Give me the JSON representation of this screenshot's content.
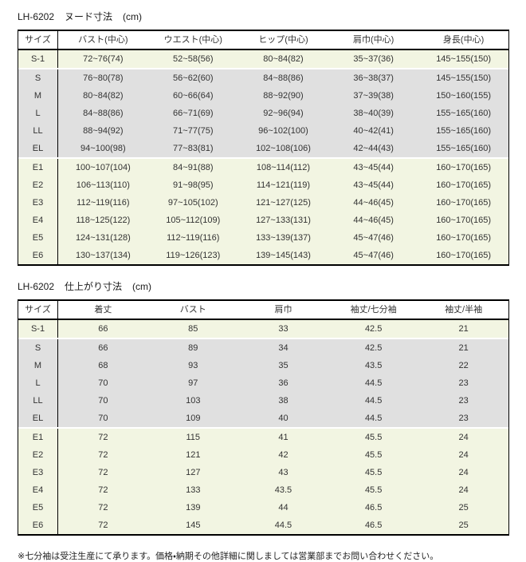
{
  "colors": {
    "row_cream": "#f2f5e2",
    "row_gray": "#e0e0e0",
    "border": "#000000",
    "text": "#333333",
    "background": "#ffffff"
  },
  "footnote": "※七分袖は受注生産にて承ります。価格・納期その他詳細に関しましては営業部までお問い合わせください。",
  "tables": [
    {
      "model": "LH-6202",
      "title": "ヌード寸法",
      "unit": "(cm)",
      "headers": [
        "サイズ",
        "バスト(中心)",
        "ウエスト(中心)",
        "ヒップ(中心)",
        "肩巾(中心)",
        "身長(中心)"
      ],
      "groups": [
        {
          "shade": "cream",
          "rows": [
            {
              "size": "S-1",
              "values": [
                "72~76(74)",
                "52~58(56)",
                "80~84(82)",
                "35~37(36)",
                "145~155(150)"
              ]
            }
          ]
        },
        {
          "shade": "gray",
          "rows": [
            {
              "size": "S",
              "values": [
                "76~80(78)",
                "56~62(60)",
                "84~88(86)",
                "36~38(37)",
                "145~155(150)"
              ]
            },
            {
              "size": "M",
              "values": [
                "80~84(82)",
                "60~66(64)",
                "88~92(90)",
                "37~39(38)",
                "150~160(155)"
              ]
            },
            {
              "size": "L",
              "values": [
                "84~88(86)",
                "66~71(69)",
                "92~96(94)",
                "38~40(39)",
                "155~165(160)"
              ]
            },
            {
              "size": "LL",
              "values": [
                "88~94(92)",
                "71~77(75)",
                "96~102(100)",
                "40~42(41)",
                "155~165(160)"
              ]
            },
            {
              "size": "EL",
              "values": [
                "94~100(98)",
                "77~83(81)",
                "102~108(106)",
                "42~44(43)",
                "155~165(160)"
              ]
            }
          ]
        },
        {
          "shade": "cream",
          "rows": [
            {
              "size": "E1",
              "values": [
                "100~107(104)",
                "84~91(88)",
                "108~114(112)",
                "43~45(44)",
                "160~170(165)"
              ]
            },
            {
              "size": "E2",
              "values": [
                "106~113(110)",
                "91~98(95)",
                "114~121(119)",
                "43~45(44)",
                "160~170(165)"
              ]
            },
            {
              "size": "E3",
              "values": [
                "112~119(116)",
                "97~105(102)",
                "121~127(125)",
                "44~46(45)",
                "160~170(165)"
              ]
            },
            {
              "size": "E4",
              "values": [
                "118~125(122)",
                "105~112(109)",
                "127~133(131)",
                "44~46(45)",
                "160~170(165)"
              ]
            },
            {
              "size": "E5",
              "values": [
                "124~131(128)",
                "112~119(116)",
                "133~139(137)",
                "45~47(46)",
                "160~170(165)"
              ]
            },
            {
              "size": "E6",
              "values": [
                "130~137(134)",
                "119~126(123)",
                "139~145(143)",
                "45~47(46)",
                "160~170(165)"
              ]
            }
          ]
        }
      ]
    },
    {
      "model": "LH-6202",
      "title": "仕上がり寸法",
      "unit": "(cm)",
      "headers": [
        "サイズ",
        "着丈",
        "バスト",
        "肩巾",
        "袖丈/七分袖",
        "袖丈/半袖"
      ],
      "groups": [
        {
          "shade": "cream",
          "rows": [
            {
              "size": "S-1",
              "values": [
                "66",
                "85",
                "33",
                "42.5",
                "21"
              ]
            }
          ]
        },
        {
          "shade": "gray",
          "rows": [
            {
              "size": "S",
              "values": [
                "66",
                "89",
                "34",
                "42.5",
                "21"
              ]
            },
            {
              "size": "M",
              "values": [
                "68",
                "93",
                "35",
                "43.5",
                "22"
              ]
            },
            {
              "size": "L",
              "values": [
                "70",
                "97",
                "36",
                "44.5",
                "23"
              ]
            },
            {
              "size": "LL",
              "values": [
                "70",
                "103",
                "38",
                "44.5",
                "23"
              ]
            },
            {
              "size": "EL",
              "values": [
                "70",
                "109",
                "40",
                "44.5",
                "23"
              ]
            }
          ]
        },
        {
          "shade": "cream",
          "rows": [
            {
              "size": "E1",
              "values": [
                "72",
                "115",
                "41",
                "45.5",
                "24"
              ]
            },
            {
              "size": "E2",
              "values": [
                "72",
                "121",
                "42",
                "45.5",
                "24"
              ]
            },
            {
              "size": "E3",
              "values": [
                "72",
                "127",
                "43",
                "45.5",
                "24"
              ]
            },
            {
              "size": "E4",
              "values": [
                "72",
                "133",
                "43.5",
                "45.5",
                "24"
              ]
            },
            {
              "size": "E5",
              "values": [
                "72",
                "139",
                "44",
                "46.5",
                "25"
              ]
            },
            {
              "size": "E6",
              "values": [
                "72",
                "145",
                "44.5",
                "46.5",
                "25"
              ]
            }
          ]
        }
      ]
    }
  ]
}
